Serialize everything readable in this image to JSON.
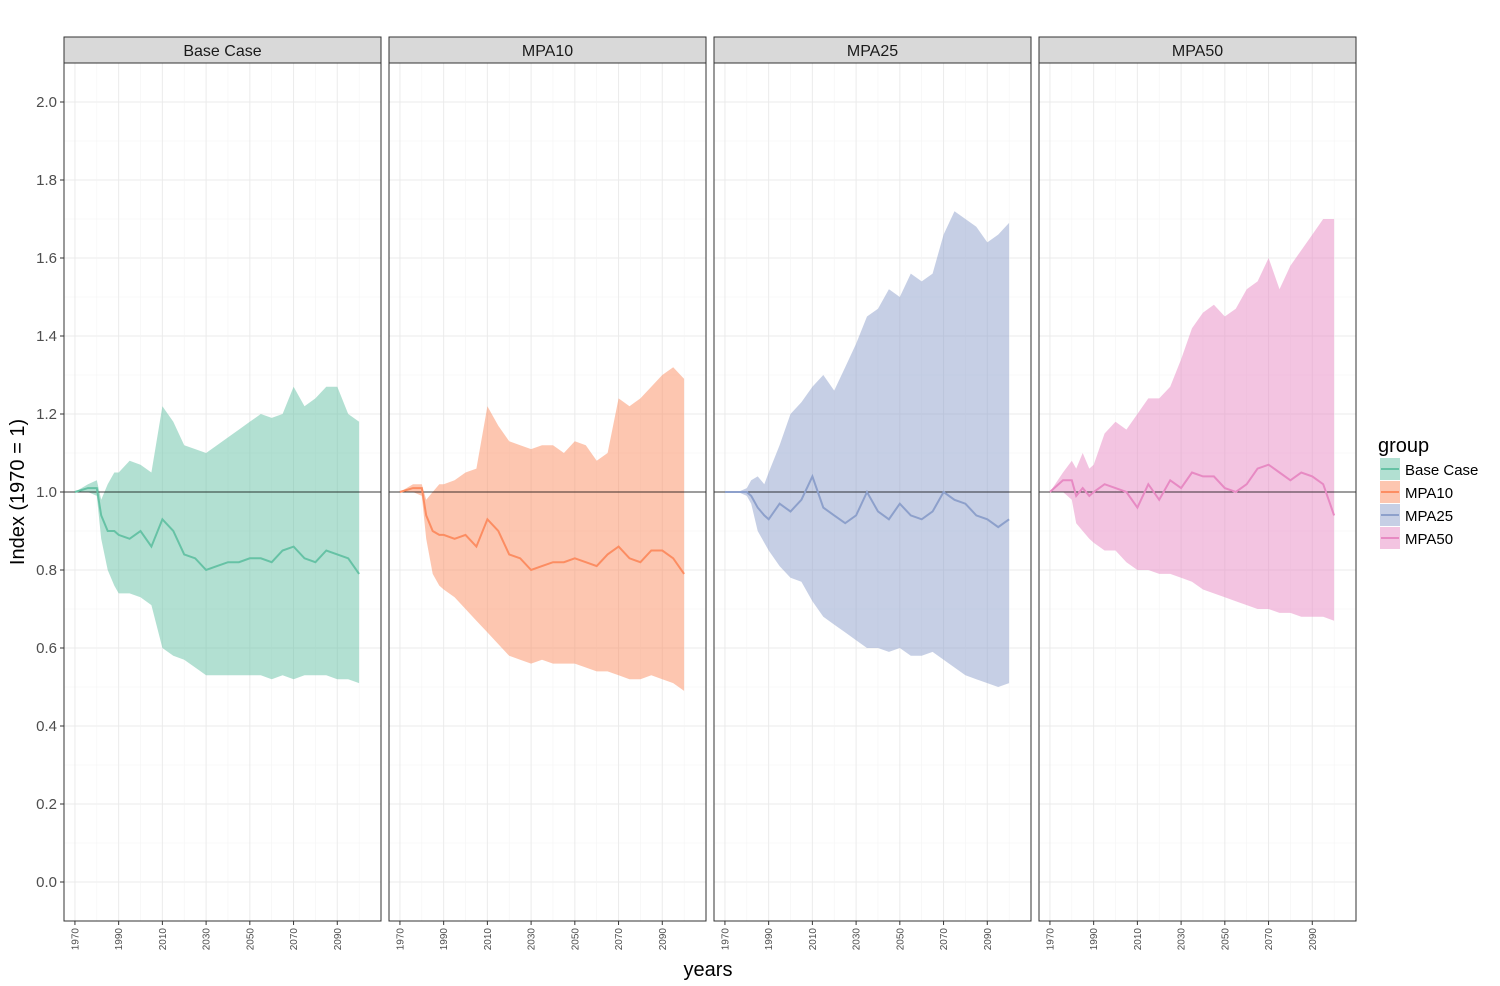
{
  "chart_data": {
    "type": "line",
    "xlabel": "years",
    "ylabel": "Index (1970 = 1)",
    "xlim": [
      1965,
      2110
    ],
    "ylim": [
      -0.1,
      2.1
    ],
    "x_ticks": [
      1970,
      1990,
      2010,
      2030,
      2050,
      2070,
      2090
    ],
    "x_tick_labels": [
      "1970",
      "1990",
      "2010",
      "2030",
      "2050",
      "2070",
      "2090"
    ],
    "y_ticks": [
      0.0,
      0.2,
      0.4,
      0.6,
      0.8,
      1.0,
      1.2,
      1.4,
      1.6,
      1.8,
      2.0
    ],
    "y_tick_labels": [
      "0.0",
      "0.2",
      "0.4",
      "0.6",
      "0.8",
      "1.0",
      "1.2",
      "1.4",
      "1.6",
      "1.8",
      "2.0"
    ],
    "reference_line": 1.0,
    "grid": true,
    "legend": {
      "title": "group",
      "position": "right",
      "entries": [
        "Base Case",
        "MPA10",
        "MPA25",
        "MPA50"
      ]
    },
    "panels": [
      {
        "name": "Base Case",
        "color": "#66c2a5",
        "fill": "#66c2a5",
        "x": [
          1970,
          1976,
          1980,
          1982,
          1985,
          1988,
          1990,
          1995,
          2000,
          2005,
          2010,
          2015,
          2020,
          2025,
          2030,
          2035,
          2040,
          2045,
          2050,
          2055,
          2060,
          2065,
          2070,
          2075,
          2080,
          2085,
          2090,
          2095,
          2100
        ],
        "mean": [
          1.0,
          1.01,
          1.01,
          0.94,
          0.9,
          0.9,
          0.89,
          0.88,
          0.9,
          0.86,
          0.93,
          0.9,
          0.84,
          0.83,
          0.8,
          0.81,
          0.82,
          0.82,
          0.83,
          0.83,
          0.82,
          0.85,
          0.86,
          0.83,
          0.82,
          0.85,
          0.84,
          0.83,
          0.79
        ],
        "upper": [
          1.0,
          1.02,
          1.03,
          0.98,
          1.02,
          1.05,
          1.05,
          1.08,
          1.07,
          1.05,
          1.22,
          1.18,
          1.12,
          1.11,
          1.1,
          1.12,
          1.14,
          1.16,
          1.18,
          1.2,
          1.19,
          1.2,
          1.27,
          1.22,
          1.24,
          1.27,
          1.27,
          1.2,
          1.18
        ],
        "lower": [
          1.0,
          1.0,
          0.99,
          0.88,
          0.8,
          0.76,
          0.74,
          0.74,
          0.73,
          0.71,
          0.6,
          0.58,
          0.57,
          0.55,
          0.53,
          0.53,
          0.53,
          0.53,
          0.53,
          0.53,
          0.52,
          0.53,
          0.52,
          0.53,
          0.53,
          0.53,
          0.52,
          0.52,
          0.51
        ]
      },
      {
        "name": "MPA10",
        "color": "#fc8d62",
        "fill": "#fc8d62",
        "x": [
          1970,
          1976,
          1980,
          1982,
          1985,
          1988,
          1990,
          1995,
          2000,
          2005,
          2010,
          2015,
          2020,
          2025,
          2030,
          2035,
          2040,
          2045,
          2050,
          2055,
          2060,
          2065,
          2070,
          2075,
          2080,
          2085,
          2090,
          2095,
          2100
        ],
        "mean": [
          1.0,
          1.01,
          1.01,
          0.94,
          0.9,
          0.89,
          0.89,
          0.88,
          0.89,
          0.86,
          0.93,
          0.9,
          0.84,
          0.83,
          0.8,
          0.81,
          0.82,
          0.82,
          0.83,
          0.82,
          0.81,
          0.84,
          0.86,
          0.83,
          0.82,
          0.85,
          0.85,
          0.83,
          0.79
        ],
        "upper": [
          1.0,
          1.02,
          1.02,
          0.98,
          1.0,
          1.02,
          1.02,
          1.03,
          1.05,
          1.06,
          1.22,
          1.17,
          1.13,
          1.12,
          1.11,
          1.12,
          1.12,
          1.1,
          1.13,
          1.12,
          1.08,
          1.1,
          1.24,
          1.22,
          1.24,
          1.27,
          1.3,
          1.32,
          1.29
        ],
        "lower": [
          1.0,
          1.0,
          0.99,
          0.88,
          0.79,
          0.76,
          0.75,
          0.73,
          0.7,
          0.67,
          0.64,
          0.61,
          0.58,
          0.57,
          0.56,
          0.57,
          0.56,
          0.56,
          0.56,
          0.55,
          0.54,
          0.54,
          0.53,
          0.52,
          0.52,
          0.53,
          0.52,
          0.51,
          0.49
        ]
      },
      {
        "name": "MPA25",
        "color": "#8da0cb",
        "fill": "#8da0cb",
        "x": [
          1970,
          1976,
          1980,
          1982,
          1985,
          1988,
          1990,
          1995,
          2000,
          2005,
          2010,
          2015,
          2020,
          2025,
          2030,
          2035,
          2040,
          2045,
          2050,
          2055,
          2060,
          2065,
          2070,
          2075,
          2080,
          2085,
          2090,
          2095,
          2100
        ],
        "mean": [
          1.0,
          1.0,
          1.0,
          0.99,
          0.96,
          0.94,
          0.93,
          0.97,
          0.95,
          0.98,
          1.04,
          0.96,
          0.94,
          0.92,
          0.94,
          1.0,
          0.95,
          0.93,
          0.97,
          0.94,
          0.93,
          0.95,
          1.0,
          0.98,
          0.97,
          0.94,
          0.93,
          0.91,
          0.93
        ],
        "upper": [
          1.0,
          1.0,
          1.01,
          1.03,
          1.04,
          1.02,
          1.05,
          1.12,
          1.2,
          1.23,
          1.27,
          1.3,
          1.26,
          1.32,
          1.38,
          1.45,
          1.47,
          1.52,
          1.5,
          1.56,
          1.54,
          1.56,
          1.66,
          1.72,
          1.7,
          1.68,
          1.64,
          1.66,
          1.69
        ],
        "lower": [
          1.0,
          1.0,
          0.99,
          0.97,
          0.9,
          0.87,
          0.85,
          0.81,
          0.78,
          0.77,
          0.72,
          0.68,
          0.66,
          0.64,
          0.62,
          0.6,
          0.6,
          0.59,
          0.6,
          0.58,
          0.58,
          0.59,
          0.57,
          0.55,
          0.53,
          0.52,
          0.51,
          0.5,
          0.51
        ]
      },
      {
        "name": "MPA50",
        "color": "#e78ac3",
        "fill": "#e78ac3",
        "x": [
          1970,
          1976,
          1980,
          1982,
          1985,
          1988,
          1990,
          1995,
          2000,
          2005,
          2010,
          2015,
          2020,
          2025,
          2030,
          2035,
          2040,
          2045,
          2050,
          2055,
          2060,
          2065,
          2070,
          2075,
          2080,
          2085,
          2090,
          2095,
          2100
        ],
        "mean": [
          1.0,
          1.03,
          1.03,
          0.99,
          1.01,
          0.99,
          1.0,
          1.02,
          1.01,
          1.0,
          0.96,
          1.02,
          0.98,
          1.03,
          1.01,
          1.05,
          1.04,
          1.04,
          1.01,
          1.0,
          1.02,
          1.06,
          1.07,
          1.05,
          1.03,
          1.05,
          1.04,
          1.02,
          0.94
        ],
        "upper": [
          1.0,
          1.05,
          1.08,
          1.06,
          1.1,
          1.06,
          1.07,
          1.15,
          1.18,
          1.16,
          1.2,
          1.24,
          1.24,
          1.27,
          1.34,
          1.42,
          1.46,
          1.48,
          1.45,
          1.47,
          1.52,
          1.54,
          1.6,
          1.52,
          1.58,
          1.62,
          1.66,
          1.7,
          1.7
        ],
        "lower": [
          1.0,
          1.0,
          0.98,
          0.92,
          0.9,
          0.88,
          0.87,
          0.85,
          0.85,
          0.82,
          0.8,
          0.8,
          0.79,
          0.79,
          0.78,
          0.77,
          0.75,
          0.74,
          0.73,
          0.72,
          0.71,
          0.7,
          0.7,
          0.69,
          0.69,
          0.68,
          0.68,
          0.68,
          0.67
        ]
      }
    ]
  }
}
